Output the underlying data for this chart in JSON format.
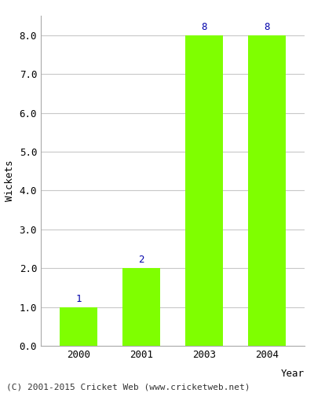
{
  "years": [
    "2000",
    "2001",
    "2003",
    "2004"
  ],
  "values": [
    1,
    2,
    8,
    8
  ],
  "bar_color": "#7FFF00",
  "bar_edgecolor": "#7FFF00",
  "label_color": "#0000AA",
  "ylabel": "Wickets",
  "xlabel": "Year",
  "yticks": [
    0.0,
    1.0,
    2.0,
    3.0,
    4.0,
    5.0,
    6.0,
    7.0,
    8.0
  ],
  "grid_color": "#c8c8c8",
  "background_color": "#ffffff",
  "plot_bg_color": "#ffffff",
  "footer_text": "(C) 2001-2015 Cricket Web (www.cricketweb.net)",
  "label_fontsize": 9,
  "axis_fontsize": 9,
  "footer_fontsize": 8,
  "bar_width": 0.6
}
